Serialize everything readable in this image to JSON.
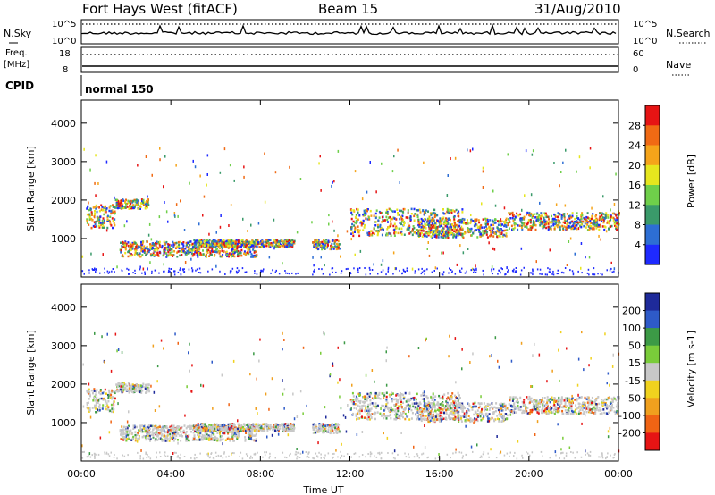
{
  "header": {
    "station": "Fort Hays West (fitACF)",
    "beam": "Beam 15",
    "date": "31/Aug/2010"
  },
  "status_panel": {
    "nsky_label": "N.Sky",
    "nsky_ticks": [
      "10^5",
      "10^0"
    ],
    "nsearch_label": "N.Search",
    "nsearch_ticks": [
      "10^5",
      "10^0"
    ],
    "freq_label": "Freq.",
    "freq_unit": "[MHz]",
    "freq_ticks": [
      "18",
      "8"
    ],
    "nave_label": "Nave",
    "nave_ticks": [
      "60",
      "0"
    ],
    "cpid_label": "CPID",
    "cpid_value": "normal 150"
  },
  "chart_data": [
    {
      "type": "heatmap",
      "parameter": "Power",
      "xlabel": "",
      "ylabel": "Slant Range [km]",
      "xlim": [
        0,
        24
      ],
      "ylim": [
        0,
        4600
      ],
      "y_ticks": [
        "1000",
        "2000",
        "3000",
        "4000"
      ],
      "colorbar_label": "Power [dB]",
      "colorbar_ticks": [
        "4",
        "8",
        "12",
        "16",
        "20",
        "24",
        "28"
      ],
      "colorbar_colors": [
        "#1e2aff",
        "#2d6ed4",
        "#3a9a6a",
        "#6fcf4a",
        "#e6e61e",
        "#f5a41a",
        "#f06a14",
        "#e61414"
      ],
      "regions": [
        {
          "t0": 0.2,
          "t1": 1.5,
          "r0": 1300,
          "r1": 1900
        },
        {
          "t0": 1.5,
          "t1": 3.0,
          "r0": 1800,
          "r1": 2050
        },
        {
          "t0": 1.7,
          "t1": 7.8,
          "r0": 550,
          "r1": 950
        },
        {
          "t0": 5.0,
          "t1": 9.5,
          "r0": 800,
          "r1": 1000
        },
        {
          "t0": 10.3,
          "t1": 11.5,
          "r0": 750,
          "r1": 1000
        },
        {
          "t0": 12.0,
          "t1": 17.0,
          "r0": 1100,
          "r1": 1800
        },
        {
          "t0": 15.0,
          "t1": 19.0,
          "r0": 1050,
          "r1": 1550
        },
        {
          "t0": 19.0,
          "t1": 24.0,
          "r0": 1250,
          "r1": 1700
        }
      ]
    },
    {
      "type": "heatmap",
      "parameter": "Velocity",
      "xlabel": "Time UT",
      "ylabel": "Slant Range [km]",
      "xlim": [
        0,
        24
      ],
      "ylim": [
        0,
        4600
      ],
      "x_ticks": [
        "00:00",
        "04:00",
        "08:00",
        "12:00",
        "16:00",
        "20:00",
        "00:00"
      ],
      "y_ticks": [
        "1000",
        "2000",
        "3000",
        "4000"
      ],
      "colorbar_label": "Velocity [m s-1]",
      "colorbar_ticks": [
        "200",
        "100",
        "50",
        "15",
        "-15",
        "-50",
        "-100",
        "-200"
      ],
      "colorbar_colors": [
        "#1e2a9a",
        "#2e5ac8",
        "#3c9a46",
        "#7acc3a",
        "#c8c8c8",
        "#f0d21e",
        "#f0a01e",
        "#f06414",
        "#e61414"
      ],
      "regions": [
        {
          "t0": 0.2,
          "t1": 1.5,
          "r0": 1300,
          "r1": 1900
        },
        {
          "t0": 1.5,
          "t1": 3.0,
          "r0": 1800,
          "r1": 2050
        },
        {
          "t0": 1.7,
          "t1": 7.8,
          "r0": 550,
          "r1": 950
        },
        {
          "t0": 5.0,
          "t1": 9.5,
          "r0": 800,
          "r1": 1000
        },
        {
          "t0": 10.3,
          "t1": 11.5,
          "r0": 750,
          "r1": 1000
        },
        {
          "t0": 12.0,
          "t1": 17.0,
          "r0": 1100,
          "r1": 1800
        },
        {
          "t0": 15.0,
          "t1": 19.0,
          "r0": 1050,
          "r1": 1550
        },
        {
          "t0": 19.0,
          "t1": 24.0,
          "r0": 1250,
          "r1": 1700
        }
      ]
    }
  ]
}
